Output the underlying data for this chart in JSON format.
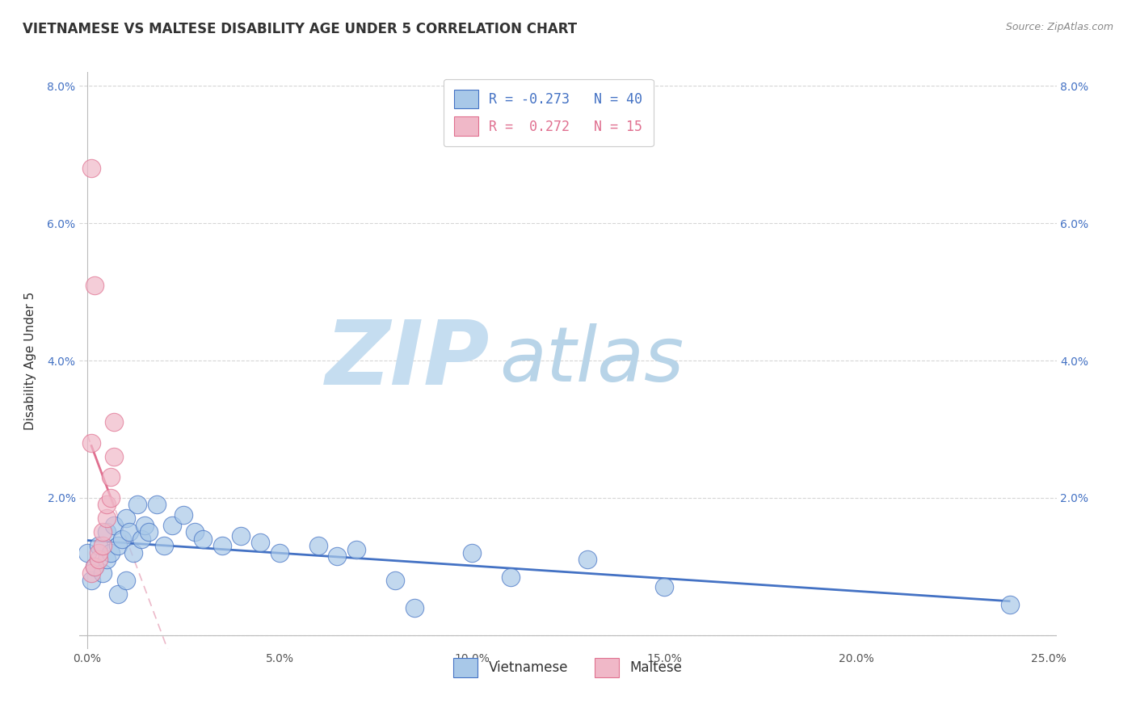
{
  "title": "VIETNAMESE VS MALTESE DISABILITY AGE UNDER 5 CORRELATION CHART",
  "source": "Source: ZipAtlas.com",
  "ylabel": "Disability Age Under 5",
  "xlabel": "",
  "xlim": [
    -0.002,
    0.252
  ],
  "ylim": [
    -0.002,
    0.082
  ],
  "xticks": [
    0.0,
    0.05,
    0.1,
    0.15,
    0.2,
    0.25
  ],
  "xticklabels": [
    "0.0%",
    "5.0%",
    "10.0%",
    "15.0%",
    "20.0%",
    "25.0%"
  ],
  "yticks": [
    0.0,
    0.02,
    0.04,
    0.06,
    0.08
  ],
  "yticklabels": [
    "",
    "2.0%",
    "4.0%",
    "6.0%",
    "8.0%"
  ],
  "legend_label1": "R = -0.273   N = 40",
  "legend_label2": "R =  0.272   N = 15",
  "watermark_zip": "ZIP",
  "watermark_atlas": "atlas",
  "watermark_color_zip": "#c5ddf0",
  "watermark_color_atlas": "#b8d4e8",
  "vietnamese_scatter_color": "#a8c8e8",
  "maltese_scatter_color": "#f0b8c8",
  "trend_vietnamese_color": "#4472c4",
  "trend_maltese_color": "#e07090",
  "trend_maltese_dashed_color": "#e8a8bc",
  "vietnamese_data": [
    [
      0.0,
      0.012
    ],
    [
      0.001,
      0.008
    ],
    [
      0.002,
      0.01
    ],
    [
      0.003,
      0.013
    ],
    [
      0.004,
      0.009
    ],
    [
      0.005,
      0.015
    ],
    [
      0.005,
      0.011
    ],
    [
      0.006,
      0.012
    ],
    [
      0.007,
      0.016
    ],
    [
      0.008,
      0.006
    ],
    [
      0.008,
      0.013
    ],
    [
      0.009,
      0.014
    ],
    [
      0.01,
      0.017
    ],
    [
      0.01,
      0.008
    ],
    [
      0.011,
      0.015
    ],
    [
      0.012,
      0.012
    ],
    [
      0.013,
      0.019
    ],
    [
      0.014,
      0.014
    ],
    [
      0.015,
      0.016
    ],
    [
      0.016,
      0.015
    ],
    [
      0.018,
      0.019
    ],
    [
      0.02,
      0.013
    ],
    [
      0.022,
      0.016
    ],
    [
      0.025,
      0.0175
    ],
    [
      0.028,
      0.015
    ],
    [
      0.03,
      0.014
    ],
    [
      0.035,
      0.013
    ],
    [
      0.04,
      0.0145
    ],
    [
      0.045,
      0.0135
    ],
    [
      0.05,
      0.012
    ],
    [
      0.06,
      0.013
    ],
    [
      0.065,
      0.0115
    ],
    [
      0.07,
      0.0125
    ],
    [
      0.08,
      0.008
    ],
    [
      0.085,
      0.004
    ],
    [
      0.1,
      0.012
    ],
    [
      0.11,
      0.0085
    ],
    [
      0.13,
      0.011
    ],
    [
      0.15,
      0.007
    ],
    [
      0.24,
      0.0045
    ]
  ],
  "maltese_data": [
    [
      0.001,
      0.009
    ],
    [
      0.002,
      0.01
    ],
    [
      0.003,
      0.011
    ],
    [
      0.003,
      0.012
    ],
    [
      0.004,
      0.013
    ],
    [
      0.004,
      0.015
    ],
    [
      0.005,
      0.017
    ],
    [
      0.005,
      0.019
    ],
    [
      0.006,
      0.02
    ],
    [
      0.006,
      0.023
    ],
    [
      0.007,
      0.026
    ],
    [
      0.007,
      0.031
    ],
    [
      0.001,
      0.068
    ],
    [
      0.002,
      0.051
    ],
    [
      0.001,
      0.028
    ]
  ],
  "background_color": "#ffffff",
  "grid_color": "#cccccc",
  "title_fontsize": 12,
  "axis_label_fontsize": 11,
  "tick_fontsize": 10
}
